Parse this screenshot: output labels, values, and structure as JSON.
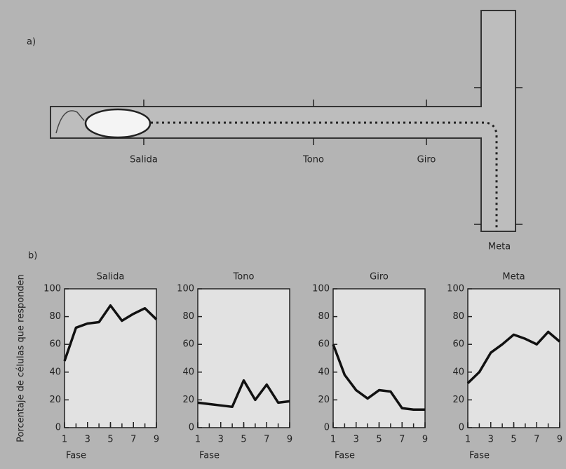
{
  "diagram": {
    "label": "a)",
    "locations": [
      "Salida",
      "Tono",
      "Giro",
      "Meta"
    ]
  },
  "panel_label": "b)",
  "chart_data": [
    {
      "type": "line",
      "title": "Salida",
      "x_label": "Fase",
      "y_label": "Porcentaje de células que responden",
      "x": [
        1,
        2,
        3,
        4,
        5,
        6,
        7,
        8,
        9
      ],
      "values": [
        48,
        72,
        75,
        76,
        88,
        77,
        82,
        86,
        78
      ],
      "color": "#111111",
      "xlim": [
        1,
        9
      ],
      "xticks": [
        1,
        3,
        5,
        7,
        9
      ],
      "ylim": [
        0,
        100
      ],
      "yticks": [
        0,
        20,
        40,
        60,
        80,
        100
      ]
    },
    {
      "type": "line",
      "title": "Tono",
      "x_label": "Fase",
      "x": [
        1,
        2,
        3,
        4,
        5,
        6,
        7,
        8,
        9
      ],
      "values": [
        18,
        17,
        16,
        15,
        34,
        20,
        31,
        18,
        19
      ],
      "color": "#111111",
      "xlim": [
        1,
        9
      ],
      "xticks": [
        1,
        3,
        5,
        7,
        9
      ],
      "ylim": [
        0,
        100
      ],
      "yticks": [
        0,
        20,
        40,
        60,
        80,
        100
      ]
    },
    {
      "type": "line",
      "title": "Giro",
      "x_label": "Fase",
      "x": [
        1,
        2,
        3,
        4,
        5,
        6,
        7,
        8,
        9
      ],
      "values": [
        60,
        38,
        27,
        21,
        27,
        26,
        14,
        13,
        13
      ],
      "color": "#111111",
      "xlim": [
        1,
        9
      ],
      "xticks": [
        1,
        3,
        5,
        7,
        9
      ],
      "ylim": [
        0,
        100
      ],
      "yticks": [
        0,
        20,
        40,
        60,
        80,
        100
      ]
    },
    {
      "type": "line",
      "title": "Meta",
      "x_label": "Fase",
      "x": [
        1,
        2,
        3,
        4,
        5,
        6,
        7,
        8,
        9
      ],
      "values": [
        32,
        40,
        54,
        60,
        67,
        64,
        60,
        69,
        62
      ],
      "color": "#111111",
      "xlim": [
        1,
        9
      ],
      "xticks": [
        1,
        3,
        5,
        7,
        9
      ],
      "ylim": [
        0,
        100
      ],
      "yticks": [
        0,
        20,
        40,
        60,
        80,
        100
      ]
    }
  ]
}
